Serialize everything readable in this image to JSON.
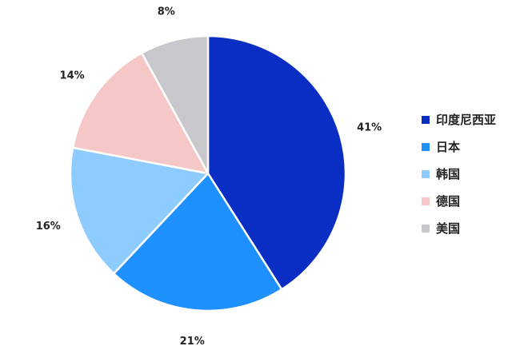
{
  "chart_data": {
    "type": "pie",
    "slices": [
      {
        "name": "印度尼西亚",
        "value": 41,
        "label": "41%",
        "color": "#0a2ec4"
      },
      {
        "name": "日本",
        "value": 21,
        "label": "21%",
        "color": "#1e90ff"
      },
      {
        "name": "韩国",
        "value": 16,
        "label": "16%",
        "color": "#8ecbff"
      },
      {
        "name": "德国",
        "value": 14,
        "label": "14%",
        "color": "#f5c7c7"
      },
      {
        "name": "美国",
        "value": 8,
        "label": "8%",
        "color": "#c8c8cc"
      }
    ],
    "start": "12 o'clock",
    "direction": "clockwise",
    "legend_position": "right"
  }
}
